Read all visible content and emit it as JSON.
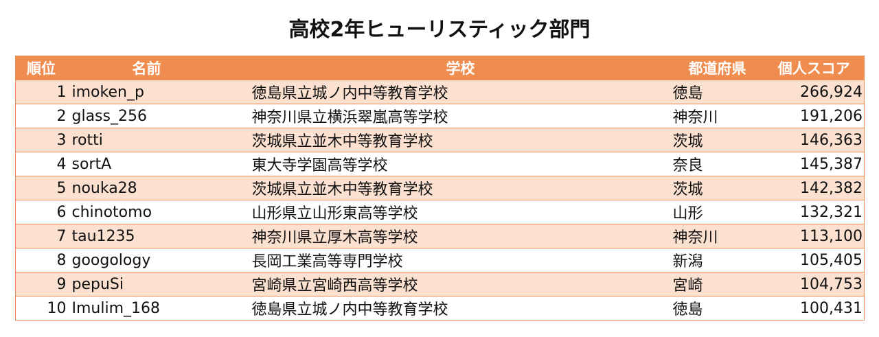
{
  "title": "高校2年ヒューリスティック部門",
  "table": {
    "header": [
      "順位",
      "名前",
      "学校",
      "都道府県",
      "個人スコア"
    ],
    "rows": [
      [
        1,
        "imoken_p",
        "徳島県立城ノ内中等教育学校",
        "徳島",
        "266,924"
      ],
      [
        2,
        "glass_256",
        "神奈川県立横浜翠嵐高等学校",
        "神奈川",
        "191,206"
      ],
      [
        3,
        "rotti",
        "茨城県立並木中等教育学校",
        "茨城",
        "146,363"
      ],
      [
        4,
        "sortA",
        "東大寺学園高等学校",
        "奈良",
        "145,387"
      ],
      [
        5,
        "nouka28",
        "茨城県立並木中等教育学校",
        "茨城",
        "142,382"
      ],
      [
        6,
        "chinotomo",
        "山形県立山形東高等学校",
        "山形",
        "132,321"
      ],
      [
        7,
        "tau1235",
        "神奈川県立厚木高等学校",
        "神奈川",
        "113,100"
      ],
      [
        8,
        "googology",
        "長岡工業高等専門学校",
        "新潟",
        "105,405"
      ],
      [
        9,
        "pepuSi",
        "宮崎県立宮崎西高等学校",
        "宮崎",
        "104,753"
      ],
      [
        10,
        "Imulim_168",
        "徳島県立城ノ内中等教育学校",
        "徳島",
        "100,431"
      ]
    ]
  }
}
